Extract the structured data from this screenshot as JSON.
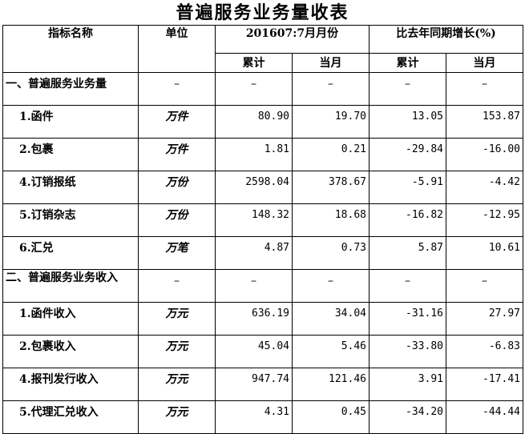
{
  "title": "普遍服务业务量收表",
  "headers": {
    "name": "指标名称",
    "unit": "单位",
    "period": "201607:7月月份",
    "growth": "比去年同期增长(%)",
    "cumulative": "累计",
    "month": "当月"
  },
  "rows": [
    {
      "name": "一、普遍服务业务量",
      "unit": "–",
      "cum": "–",
      "mon": "–",
      "gcum": "–",
      "gmon": "–"
    },
    {
      "name": "1.函件",
      "unit": "万件",
      "cum": "80.90",
      "mon": "19.70",
      "gcum": "13.05",
      "gmon": "153.87"
    },
    {
      "name": "2.包裹",
      "unit": "万件",
      "cum": "1.81",
      "mon": "0.21",
      "gcum": "-29.84",
      "gmon": "-16.00"
    },
    {
      "name": "4.订销报纸",
      "unit": "万份",
      "cum": "2598.04",
      "mon": "378.67",
      "gcum": "-5.91",
      "gmon": "-4.42"
    },
    {
      "name": "5.订销杂志",
      "unit": "万份",
      "cum": "148.32",
      "mon": "18.68",
      "gcum": "-16.82",
      "gmon": "-12.95"
    },
    {
      "name": "6.汇兑",
      "unit": "万笔",
      "cum": "4.87",
      "mon": "0.73",
      "gcum": "5.87",
      "gmon": "10.61"
    },
    {
      "name": "二、普遍服务业务收入",
      "unit": "–",
      "cum": "–",
      "mon": "–",
      "gcum": "–",
      "gmon": "–"
    },
    {
      "name": "1.函件收入",
      "unit": "万元",
      "cum": "636.19",
      "mon": "34.04",
      "gcum": "-31.16",
      "gmon": "27.97"
    },
    {
      "name": "2.包裹收入",
      "unit": "万元",
      "cum": "45.04",
      "mon": "5.46",
      "gcum": "-33.80",
      "gmon": "-6.83"
    },
    {
      "name": "4.报刊发行收入",
      "unit": "万元",
      "cum": "947.74",
      "mon": "121.46",
      "gcum": "3.91",
      "gmon": "-17.41"
    },
    {
      "name": "5.代理汇兑收入",
      "unit": "万元",
      "cum": "4.31",
      "mon": "0.45",
      "gcum": "-34.20",
      "gmon": "-44.44"
    }
  ]
}
